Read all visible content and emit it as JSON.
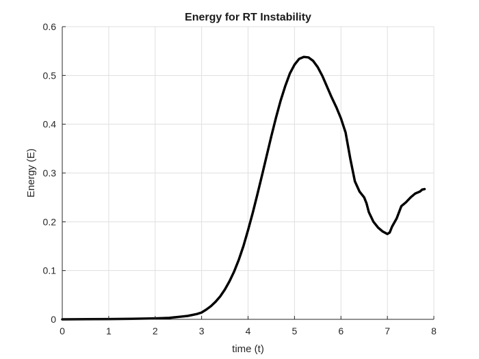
{
  "chart_data": {
    "type": "line",
    "title": "Energy for RT Instability",
    "xlabel": "time (t)",
    "ylabel": "Energy (E)",
    "xlim": [
      0,
      8
    ],
    "ylim": [
      0,
      0.6
    ],
    "xticks": [
      0,
      1,
      2,
      3,
      4,
      5,
      6,
      7,
      8
    ],
    "yticks": [
      0,
      0.1,
      0.2,
      0.3,
      0.4,
      0.5,
      0.6
    ],
    "xtick_labels": [
      "0",
      "1",
      "2",
      "3",
      "4",
      "5",
      "6",
      "7",
      "8"
    ],
    "ytick_labels": [
      "0",
      "0.1",
      "0.2",
      "0.3",
      "0.4",
      "0.5",
      "0.6"
    ],
    "grid": true,
    "legend": "none",
    "series": [
      {
        "color": "#000000",
        "x": [
          0.0,
          1.0,
          1.5,
          2.0,
          2.3,
          2.5,
          2.7,
          2.9,
          3.0,
          3.1,
          3.2,
          3.3,
          3.4,
          3.5,
          3.6,
          3.7,
          3.8,
          3.9,
          4.0,
          4.1,
          4.2,
          4.3,
          4.4,
          4.5,
          4.6,
          4.7,
          4.8,
          4.9,
          5.0,
          5.1,
          5.2,
          5.3,
          5.4,
          5.5,
          5.6,
          5.7,
          5.8,
          5.9,
          6.0,
          6.1,
          6.2,
          6.3,
          6.4,
          6.5,
          6.55,
          6.6,
          6.7,
          6.8,
          6.9,
          7.0,
          7.05,
          7.1,
          7.2,
          7.3,
          7.4,
          7.5,
          7.6,
          7.7,
          7.75,
          7.8
        ],
        "y": [
          0.0,
          0.0005,
          0.001,
          0.002,
          0.003,
          0.005,
          0.007,
          0.011,
          0.014,
          0.02,
          0.027,
          0.036,
          0.047,
          0.061,
          0.078,
          0.098,
          0.122,
          0.15,
          0.183,
          0.218,
          0.256,
          0.295,
          0.335,
          0.375,
          0.413,
          0.448,
          0.478,
          0.504,
          0.522,
          0.534,
          0.538,
          0.537,
          0.53,
          0.517,
          0.499,
          0.477,
          0.455,
          0.435,
          0.412,
          0.383,
          0.33,
          0.283,
          0.262,
          0.25,
          0.238,
          0.22,
          0.2,
          0.188,
          0.18,
          0.175,
          0.178,
          0.19,
          0.207,
          0.232,
          0.24,
          0.25,
          0.258,
          0.262,
          0.266,
          0.267
        ]
      }
    ]
  }
}
